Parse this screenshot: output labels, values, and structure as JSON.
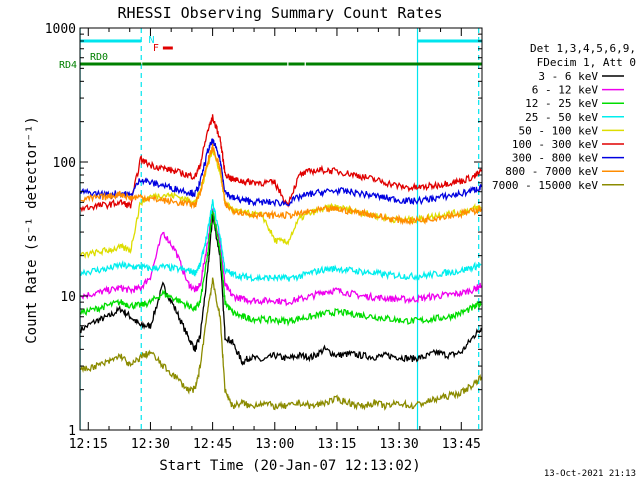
{
  "chart_data": {
    "type": "line",
    "title": "RHESSI Observing Summary Count Rates",
    "xlabel": "Start Time (20-Jan-07 12:13:02)",
    "ylabel": "Count Rate (s⁻¹ detector⁻¹)",
    "y_scale": "log",
    "ylim": [
      1,
      1000
    ],
    "xlim_minutes": [
      12.2167,
      13.8333
    ],
    "x_tick_labels": [
      "12:15",
      "12:30",
      "12:45",
      "13:00",
      "13:15",
      "13:30",
      "13:45"
    ],
    "x_tick_values_hours": [
      12.25,
      12.5,
      12.75,
      13.0,
      13.25,
      13.5,
      13.75
    ],
    "y_tick_labels": [
      "1",
      "10",
      "100",
      "1000"
    ],
    "y_tick_values": [
      1,
      10,
      100,
      1000
    ],
    "legend_header": [
      "Det 1,3,4,5,6,9,",
      "FDecim 1, Att 0"
    ],
    "legend_position": "right",
    "footer_date": "13-Oct-2021 21:13",
    "flags": [
      {
        "label": "N",
        "color": "#00e5ee",
        "segments": [
          [
            12.2167,
            12.463
          ],
          [
            13.574,
            13.833
          ]
        ]
      },
      {
        "label": "F",
        "color": "#e00000",
        "segments": [
          [
            12.55,
            12.59
          ]
        ]
      },
      {
        "label": "RD0",
        "color": "#008000",
        "segments": [
          [
            12.2167,
            12.22
          ]
        ]
      },
      {
        "label": "RD4",
        "color": "#008000",
        "segments": [
          [
            12.2167,
            12.463
          ],
          [
            12.467,
            13.05
          ],
          [
            13.055,
            13.12
          ],
          [
            13.125,
            13.833
          ]
        ]
      }
    ],
    "cyan_vlines_solid": [
      12.217,
      13.574
    ],
    "cyan_vlines_dashed": [
      12.463,
      13.82
    ],
    "series": [
      {
        "name": "3 - 6 keV",
        "color": "#000000",
        "x": [
          12.22,
          12.28,
          12.33,
          12.38,
          12.42,
          12.46,
          12.5,
          12.55,
          12.6,
          12.65,
          12.68,
          12.7,
          12.73,
          12.75,
          12.78,
          12.8,
          12.83,
          12.87,
          12.9,
          12.95,
          13.0,
          13.05,
          13.1,
          13.15,
          13.2,
          13.25,
          13.3,
          13.35,
          13.4,
          13.45,
          13.5,
          13.55,
          13.6,
          13.65,
          13.7,
          13.75,
          13.8,
          13.83
        ],
        "y": [
          5.6,
          6.5,
          7.0,
          8.0,
          7.0,
          6.0,
          6.0,
          12.0,
          8.0,
          5.0,
          4.0,
          5.0,
          15.0,
          40.0,
          20.0,
          5.0,
          4.5,
          3.2,
          3.5,
          3.3,
          3.6,
          3.4,
          3.6,
          3.5,
          4.0,
          3.6,
          3.7,
          3.6,
          3.5,
          3.6,
          3.5,
          3.4,
          3.5,
          3.8,
          3.6,
          3.8,
          5.0,
          5.8
        ]
      },
      {
        "name": "6 - 12 keV",
        "color": "#ee00ee",
        "x": [
          12.22,
          12.28,
          12.33,
          12.38,
          12.42,
          12.46,
          12.5,
          12.55,
          12.6,
          12.65,
          12.68,
          12.7,
          12.73,
          12.75,
          12.78,
          12.8,
          12.83,
          12.87,
          12.9,
          12.95,
          13.0,
          13.05,
          13.1,
          13.15,
          13.2,
          13.25,
          13.3,
          13.35,
          13.4,
          13.45,
          13.5,
          13.55,
          13.6,
          13.65,
          13.7,
          13.75,
          13.8,
          13.83
        ],
        "y": [
          10.0,
          10.5,
          11.0,
          11.5,
          11.0,
          11.5,
          14.0,
          30.0,
          22.0,
          12.5,
          11.0,
          12.0,
          25.0,
          45.0,
          25.0,
          12.0,
          10.0,
          9.5,
          9.3,
          9.2,
          9.3,
          9.0,
          9.5,
          10.0,
          10.8,
          11.0,
          10.5,
          10.0,
          9.8,
          9.6,
          9.5,
          9.4,
          9.7,
          10.0,
          10.2,
          10.5,
          11.2,
          12.0
        ]
      },
      {
        "name": "12 - 25 keV",
        "color": "#00dd00",
        "x": [
          12.22,
          12.28,
          12.33,
          12.38,
          12.42,
          12.46,
          12.5,
          12.55,
          12.6,
          12.65,
          12.68,
          12.7,
          12.73,
          12.75,
          12.78,
          12.8,
          12.83,
          12.87,
          12.9,
          12.95,
          13.0,
          13.05,
          13.1,
          13.15,
          13.2,
          13.25,
          13.3,
          13.35,
          13.4,
          13.45,
          13.5,
          13.55,
          13.6,
          13.65,
          13.7,
          13.75,
          13.8,
          13.83
        ],
        "y": [
          7.5,
          8.0,
          8.5,
          9.0,
          8.5,
          8.5,
          9.0,
          10.5,
          9.5,
          8.5,
          8.0,
          9.0,
          20.0,
          45.0,
          22.0,
          9.0,
          7.5,
          7.0,
          6.8,
          6.7,
          6.6,
          6.5,
          6.8,
          7.0,
          7.4,
          7.6,
          7.4,
          7.2,
          7.0,
          6.8,
          6.6,
          6.5,
          6.6,
          6.8,
          7.0,
          7.5,
          8.2,
          8.8
        ]
      },
      {
        "name": "25 - 50 keV",
        "color": "#00eeee",
        "x": [
          12.22,
          12.28,
          12.33,
          12.38,
          12.42,
          12.46,
          12.5,
          12.55,
          12.6,
          12.65,
          12.68,
          12.7,
          12.73,
          12.75,
          12.78,
          12.8,
          12.83,
          12.87,
          12.9,
          12.95,
          13.0,
          13.05,
          13.1,
          13.15,
          13.2,
          13.25,
          13.3,
          13.35,
          13.4,
          13.45,
          13.5,
          13.55,
          13.6,
          13.65,
          13.7,
          13.75,
          13.8,
          13.83
        ],
        "y": [
          15.0,
          15.5,
          16.0,
          17.0,
          16.5,
          16.5,
          16.0,
          16.5,
          16.0,
          15.5,
          15.0,
          17.0,
          30.0,
          50.0,
          28.0,
          15.5,
          14.5,
          14.0,
          13.8,
          13.6,
          13.7,
          13.5,
          14.0,
          15.0,
          15.8,
          16.0,
          15.6,
          15.2,
          14.8,
          14.4,
          14.2,
          14.0,
          14.2,
          14.6,
          15.0,
          15.5,
          16.5,
          17.0
        ]
      },
      {
        "name": "50 - 100 keV",
        "color": "#dddd00",
        "x": [
          12.22,
          12.28,
          12.33,
          12.38,
          12.42,
          12.46,
          12.5,
          12.55,
          12.6,
          12.65,
          12.68,
          12.7,
          12.73,
          12.75,
          12.78,
          12.8,
          12.83,
          12.87,
          12.9,
          12.95,
          13.0,
          13.05,
          13.1,
          13.15,
          13.2,
          13.25,
          13.3,
          13.35,
          13.4,
          13.45,
          13.5,
          13.55,
          13.6,
          13.65,
          13.7,
          13.75,
          13.8,
          13.83
        ],
        "y": [
          20.0,
          21.0,
          22.0,
          23.0,
          22.0,
          50.0,
          55.0,
          57.0,
          56.0,
          52.0,
          50.0,
          60.0,
          95.0,
          125.0,
          85.0,
          50.0,
          44.0,
          42.0,
          41.0,
          40.0,
          26.0,
          25.0,
          38.0,
          42.0,
          45.0,
          46.0,
          44.0,
          42.0,
          40.0,
          38.0,
          37.0,
          37.0,
          38.0,
          40.0,
          41.0,
          42.0,
          45.0,
          46.0
        ]
      },
      {
        "name": "100 - 300 keV",
        "color": "#e00000",
        "x": [
          12.22,
          12.28,
          12.33,
          12.38,
          12.42,
          12.46,
          12.5,
          12.55,
          12.6,
          12.65,
          12.68,
          12.7,
          12.73,
          12.75,
          12.78,
          12.8,
          12.83,
          12.87,
          12.9,
          12.95,
          13.0,
          13.05,
          13.1,
          13.15,
          13.2,
          13.25,
          13.3,
          13.35,
          13.4,
          13.45,
          13.5,
          13.55,
          13.6,
          13.65,
          13.7,
          13.75,
          13.8,
          13.83
        ],
        "y": [
          45.0,
          47.0,
          48.0,
          50.0,
          47.0,
          105.0,
          95.0,
          90.0,
          85.0,
          80.0,
          78.0,
          95.0,
          170.0,
          215.0,
          150.0,
          82.0,
          74.0,
          72.0,
          71.0,
          70.0,
          70.0,
          48.0,
          80.0,
          86.0,
          87.0,
          85.0,
          82.0,
          78.0,
          74.0,
          70.0,
          66.0,
          64.0,
          65.0,
          67.0,
          70.0,
          72.0,
          78.0,
          85.0
        ]
      },
      {
        "name": "300 - 800 keV",
        "color": "#0000e0",
        "x": [
          12.22,
          12.28,
          12.33,
          12.38,
          12.42,
          12.46,
          12.5,
          12.55,
          12.6,
          12.65,
          12.68,
          12.7,
          12.73,
          12.75,
          12.78,
          12.8,
          12.83,
          12.87,
          12.9,
          12.95,
          13.0,
          13.05,
          13.1,
          13.15,
          13.2,
          13.25,
          13.3,
          13.35,
          13.4,
          13.45,
          13.5,
          13.55,
          13.6,
          13.65,
          13.7,
          13.75,
          13.8,
          13.83
        ],
        "y": [
          60.0,
          58.0,
          57.0,
          59.0,
          56.0,
          75.0,
          70.0,
          67.0,
          63.0,
          60.0,
          58.0,
          70.0,
          120.0,
          145.0,
          105.0,
          60.0,
          54.0,
          52.0,
          51.0,
          50.0,
          50.0,
          49.0,
          55.0,
          58.0,
          60.0,
          61.0,
          60.0,
          58.0,
          56.0,
          54.0,
          52.0,
          51.0,
          52.0,
          54.0,
          56.0,
          58.0,
          62.0,
          65.0
        ]
      },
      {
        "name": "800 - 7000 keV",
        "color": "#ff8c00",
        "x": [
          12.22,
          12.28,
          12.33,
          12.38,
          12.42,
          12.46,
          12.5,
          12.55,
          12.6,
          12.65,
          12.68,
          12.7,
          12.73,
          12.75,
          12.78,
          12.8,
          12.83,
          12.87,
          12.9,
          12.95,
          13.0,
          13.05,
          13.1,
          13.15,
          13.2,
          13.25,
          13.3,
          13.35,
          13.4,
          13.45,
          13.5,
          13.55,
          13.6,
          13.65,
          13.7,
          13.75,
          13.8,
          13.83
        ],
        "y": [
          52.0,
          54.0,
          55.0,
          58.0,
          54.0,
          55.0,
          53.0,
          52.0,
          50.0,
          49.0,
          48.0,
          60.0,
          100.0,
          130.0,
          90.0,
          48.0,
          44.0,
          42.0,
          41.0,
          40.0,
          40.0,
          40.0,
          41.0,
          43.0,
          44.0,
          44.5,
          43.0,
          42.0,
          40.0,
          38.0,
          37.0,
          36.5,
          37.0,
          38.5,
          40.0,
          41.0,
          43.0,
          45.0
        ]
      },
      {
        "name": "7000 - 15000 keV",
        "color": "#8b8b00",
        "x": [
          12.22,
          12.28,
          12.33,
          12.38,
          12.42,
          12.46,
          12.5,
          12.55,
          12.6,
          12.65,
          12.68,
          12.7,
          12.73,
          12.75,
          12.78,
          12.8,
          12.83,
          12.87,
          12.9,
          12.95,
          13.0,
          13.05,
          13.1,
          13.15,
          13.2,
          13.25,
          13.3,
          13.35,
          13.4,
          13.45,
          13.5,
          13.55,
          13.6,
          13.65,
          13.7,
          13.75,
          13.8,
          13.83
        ],
        "y": [
          2.8,
          3.0,
          3.2,
          3.6,
          3.0,
          3.5,
          3.8,
          3.0,
          2.5,
          2.0,
          2.0,
          3.0,
          8.0,
          13.0,
          7.0,
          2.0,
          1.5,
          1.6,
          1.5,
          1.6,
          1.5,
          1.5,
          1.6,
          1.5,
          1.6,
          1.7,
          1.6,
          1.5,
          1.6,
          1.5,
          1.6,
          1.5,
          1.6,
          1.7,
          1.8,
          1.9,
          2.2,
          2.5
        ]
      }
    ]
  }
}
